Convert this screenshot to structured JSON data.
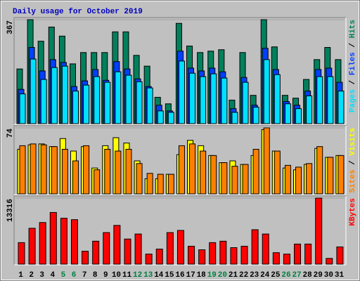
{
  "chart_data": [
    {
      "type": "bar",
      "title": "Daily usage for October 2019",
      "categories": [
        "1",
        "2",
        "3",
        "4",
        "5",
        "6",
        "7",
        "8",
        "9",
        "10",
        "11",
        "12",
        "13",
        "14",
        "15",
        "16",
        "17",
        "18",
        "19",
        "20",
        "21",
        "22",
        "23",
        "24",
        "25",
        "26",
        "27",
        "28",
        "29",
        "30",
        "31"
      ],
      "highlight_categories": [
        "5",
        "6",
        "12",
        "13",
        "19",
        "20",
        "26",
        "27"
      ],
      "highlight_color": "#008040",
      "legend_separator": " / ",
      "ylim": [
        0,
        367
      ],
      "yticks": [
        367
      ],
      "series": [
        {
          "name": "Hits",
          "color": "#00805c",
          "values": [
            193,
            367,
            291,
            341,
            309,
            211,
            251,
            251,
            251,
            324,
            324,
            241,
            203,
            93,
            70,
            354,
            274,
            251,
            256,
            261,
            83,
            251,
            100,
            367,
            271,
            100,
            90,
            156,
            226,
            269,
            226
          ]
        },
        {
          "name": "Files",
          "color": "#0040ff",
          "values": [
            121,
            269,
            186,
            226,
            216,
            131,
            151,
            191,
            153,
            219,
            193,
            158,
            131,
            65,
            45,
            256,
            196,
            186,
            196,
            183,
            53,
            163,
            65,
            266,
            191,
            78,
            65,
            115,
            191,
            196,
            146
          ]
        },
        {
          "name": "Pages",
          "color": "#00e0ff",
          "values": [
            105,
            228,
            156,
            198,
            203,
            115,
            136,
            166,
            146,
            183,
            171,
            148,
            126,
            45,
            40,
            221,
            178,
            166,
            176,
            161,
            40,
            146,
            58,
            226,
            173,
            70,
            53,
            98,
            166,
            166,
            115
          ]
        }
      ]
    },
    {
      "type": "bar",
      "ylim": [
        0,
        74
      ],
      "yticks": [
        74
      ],
      "series": [
        {
          "name": "Visits",
          "color": "#ffff00",
          "values": [
            50,
            55,
            56,
            53,
            62,
            48,
            53,
            29,
            54,
            63,
            57,
            37,
            17,
            17,
            22,
            44,
            60,
            54,
            43,
            35,
            37,
            33,
            43,
            72,
            48,
            29,
            27,
            33,
            51,
            41,
            43
          ]
        },
        {
          "name": "Sites",
          "color": "#ff8000",
          "values": [
            54,
            56,
            55,
            53,
            50,
            37,
            54,
            27,
            50,
            48,
            50,
            34,
            23,
            22,
            22,
            54,
            56,
            48,
            43,
            35,
            31,
            33,
            50,
            74,
            48,
            32,
            30,
            34,
            53,
            41,
            43
          ]
        }
      ]
    },
    {
      "type": "bar",
      "ylim": [
        0,
        13316
      ],
      "yticks": [
        13316
      ],
      "series": [
        {
          "name": "KBytes",
          "color": "#ff0000",
          "values": [
            4341,
            7235,
            8392,
            10418,
            9260,
            8970,
            2605,
            4631,
            6367,
            7814,
            5065,
            6078,
            2026,
            3039,
            6367,
            6801,
            3617,
            2894,
            4341,
            4631,
            3328,
            3617,
            6946,
            6078,
            2315,
            2026,
            4052,
            4052,
            13316,
            1158,
            3473
          ]
        }
      ]
    }
  ]
}
